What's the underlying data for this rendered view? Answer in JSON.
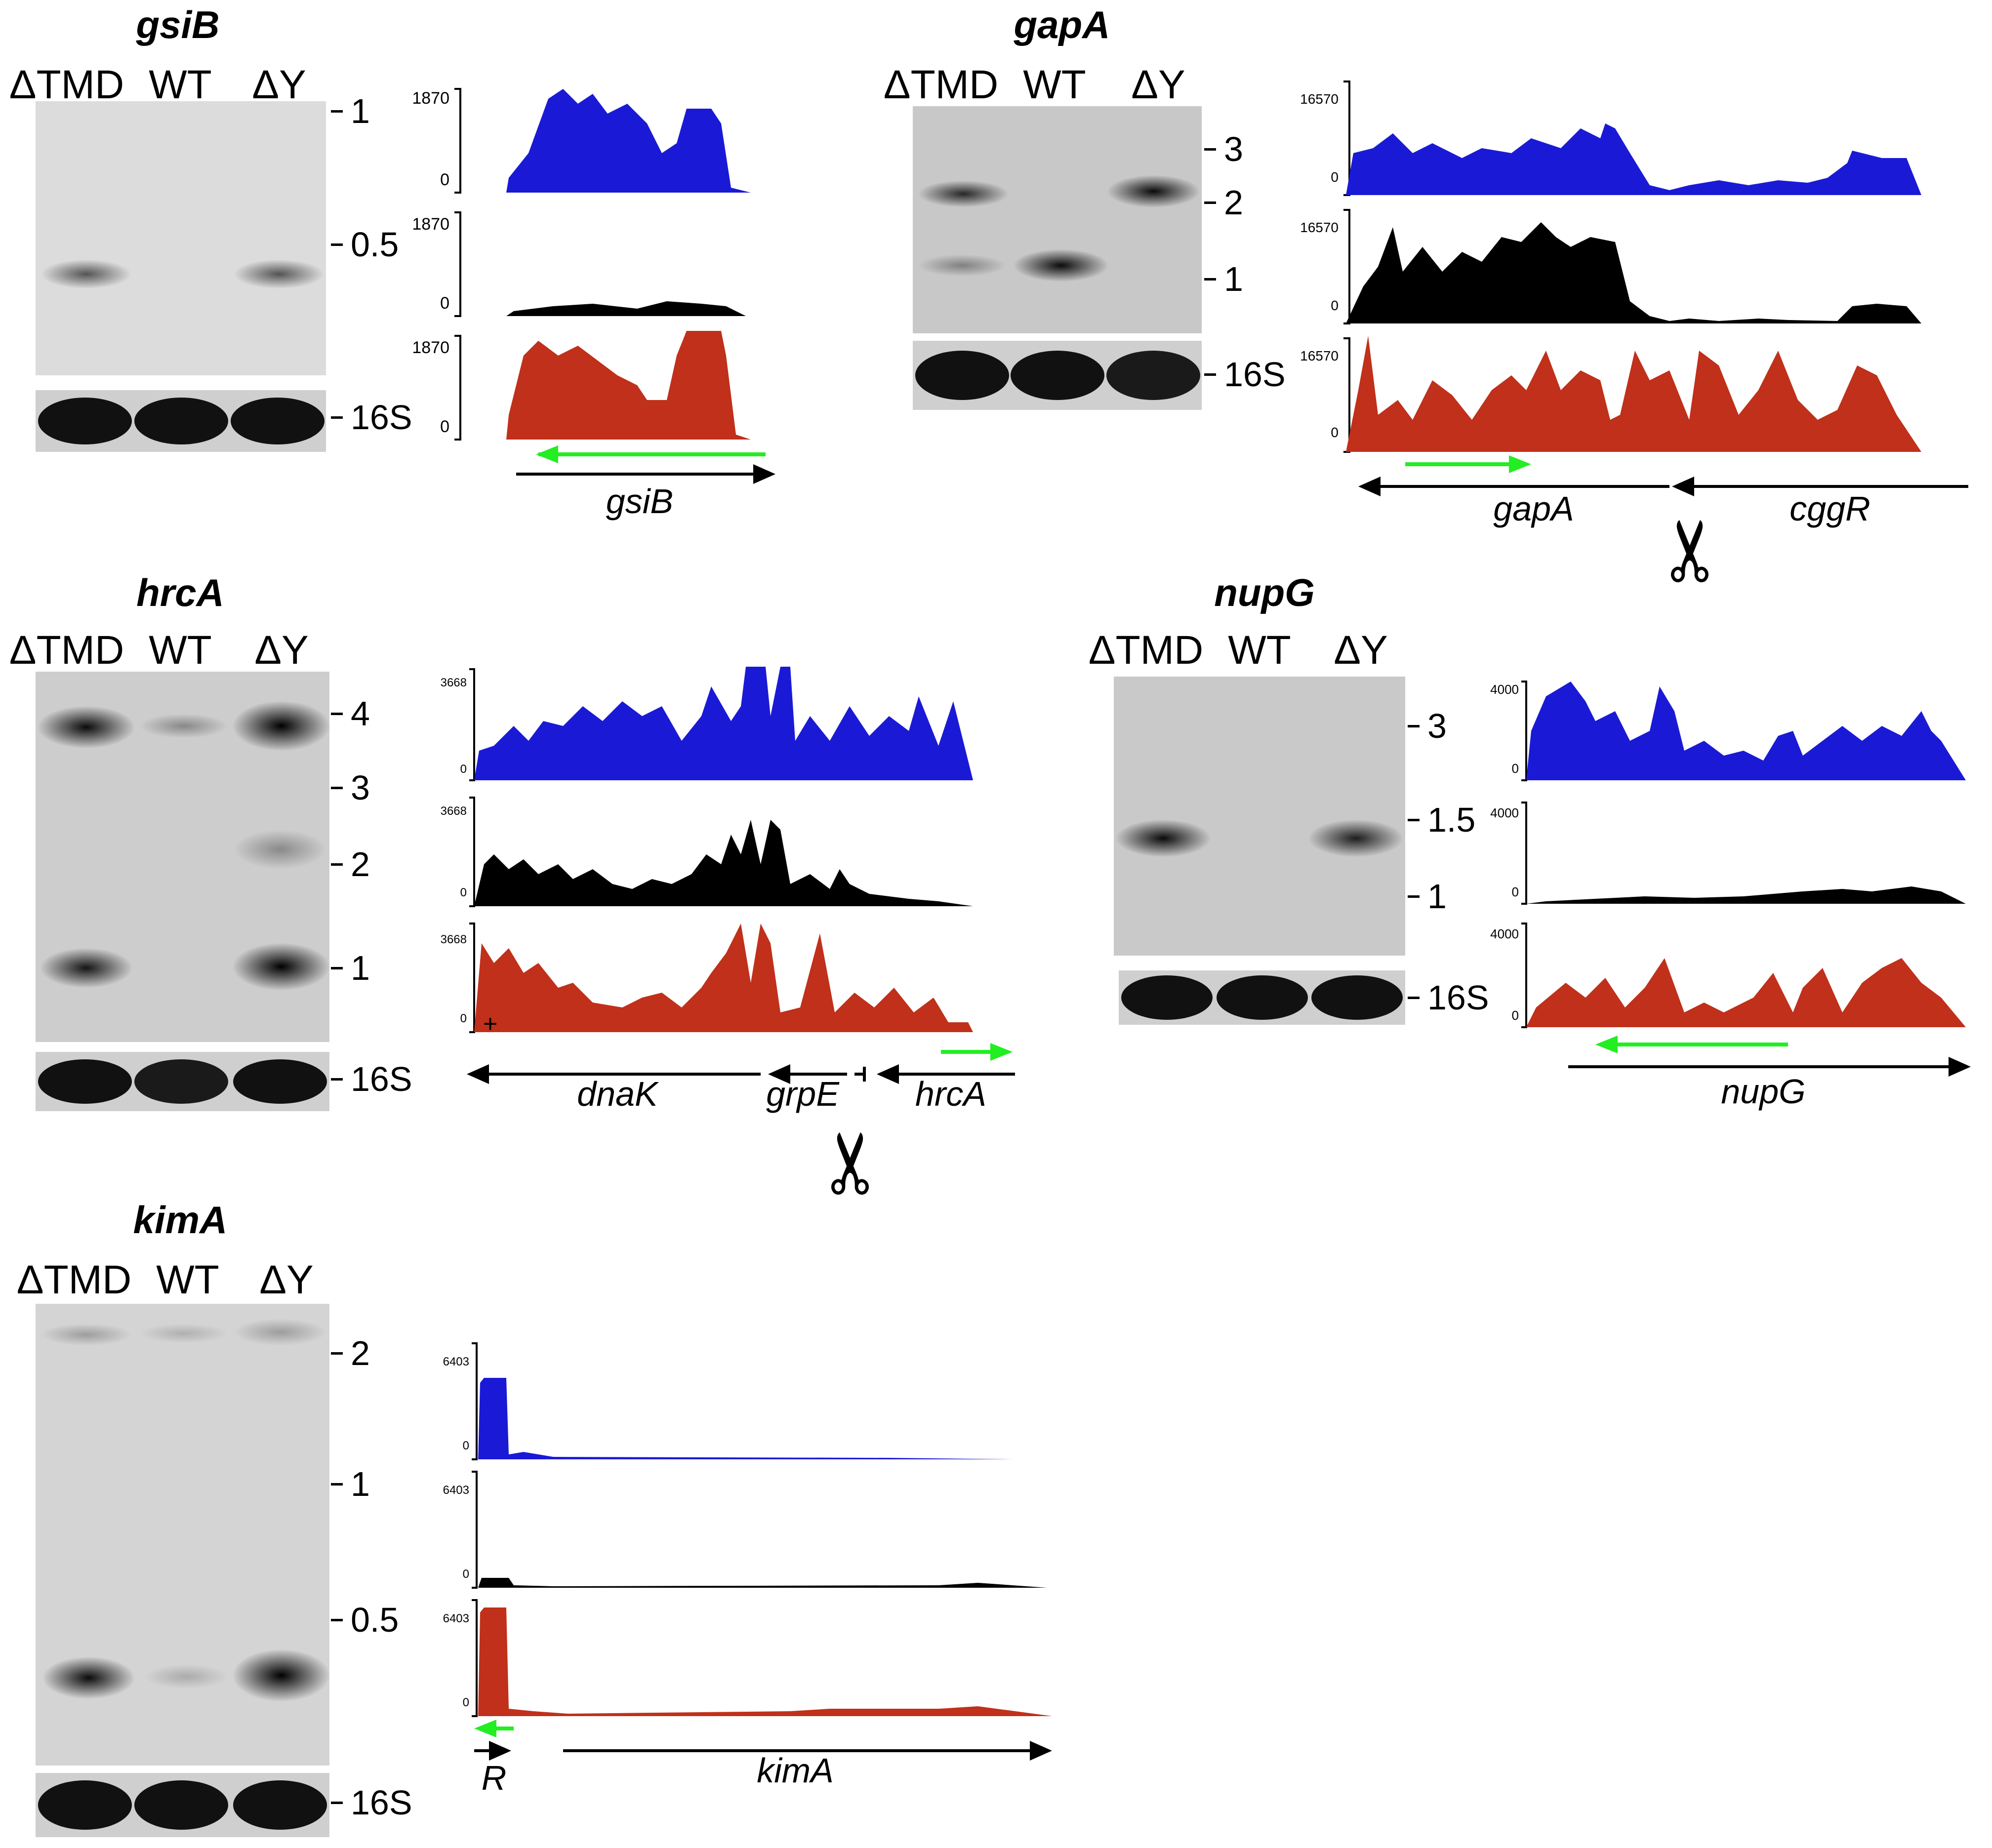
{
  "lanes": [
    "ΔTMD",
    "WT",
    "ΔY"
  ],
  "loading_control": "16S",
  "colors": {
    "dTMD_track": "#1a1ad6",
    "WT_track": "#000000",
    "dY_track": "#c0301a",
    "sRNA_arrow": "#22ee22"
  },
  "panels": {
    "gsiB": {
      "title": "gsiB",
      "markers": [
        "1",
        "0.5"
      ],
      "scale": "1870",
      "zero": "0",
      "genes": [
        "gsiB"
      ]
    },
    "gapA": {
      "title": "gapA",
      "markers": [
        "3",
        "2",
        "1"
      ],
      "scale": "16570",
      "zero": "0",
      "genes": [
        "gapA",
        "cggR"
      ]
    },
    "hrcA": {
      "title": "hrcA",
      "markers": [
        "4",
        "3",
        "2",
        "1"
      ],
      "scale": "3668",
      "zero": "0",
      "genes": [
        "dnaK",
        "grpE",
        "hrcA"
      ]
    },
    "nupG": {
      "title": "nupG",
      "markers": [
        "3",
        "1.5",
        "1"
      ],
      "scale": "4000",
      "zero": "0",
      "genes": [
        "nupG"
      ]
    },
    "kimA": {
      "title": "kimA",
      "markers": [
        "2",
        "1",
        "0.5"
      ],
      "scale": "6403",
      "zero": "0",
      "genes": [
        "R",
        "kimA"
      ]
    }
  }
}
